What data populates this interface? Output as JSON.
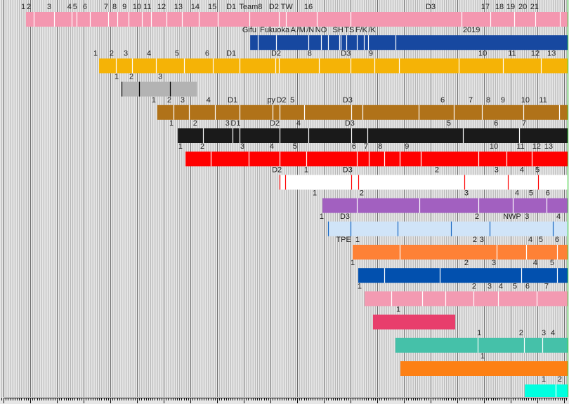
{
  "chart_data": {
    "type": "timeline",
    "title": "",
    "x_range": [
      2004.87,
      2026.13
    ],
    "x_unit": "year",
    "grid": "monthly minor, yearly major",
    "rows": [
      {
        "color": "#f497b0",
        "divider": "#ffffff",
        "start": 2005.84,
        "end": 2026.13,
        "dividers": [
          2006.13,
          2006.89,
          2007.55,
          2007.74,
          2008.24,
          2008.92,
          2009.26,
          2009.68,
          2010.18,
          2010.53,
          2011.11,
          2011.68,
          2012.32,
          2013.03,
          2014.21,
          2015.32,
          2015.58,
          2016.74,
          2018.0,
          2022.16,
          2023.24,
          2024.13,
          2024.92,
          2025.84
        ],
        "labels": [
          [
            "1",
            2005.74
          ],
          [
            "2",
            2005.95
          ],
          [
            "3",
            2006.71
          ],
          [
            "4",
            2007.47
          ],
          [
            "5",
            2007.68
          ],
          [
            "6",
            2008.05
          ],
          [
            "7",
            2008.84
          ],
          [
            "8",
            2009.16
          ],
          [
            "9",
            2009.53
          ],
          [
            "10",
            2010.0
          ],
          [
            "11",
            2010.39
          ],
          [
            "12",
            2010.92
          ],
          [
            "13",
            2011.55
          ],
          [
            "14",
            2012.18
          ],
          [
            "15",
            2012.82
          ],
          [
            "D1",
            2013.53
          ],
          [
            "Team8",
            2014.26
          ],
          [
            "D2",
            2015.13
          ],
          [
            "TW",
            2015.61
          ],
          [
            "16",
            2016.42
          ],
          [
            "D3",
            2021.0
          ],
          [
            "17",
            2023.05
          ],
          [
            "18",
            2023.58
          ],
          [
            "19",
            2024.0
          ],
          [
            "20",
            2024.45
          ],
          [
            "21",
            2024.89
          ]
        ]
      },
      {
        "color": "#1748a0",
        "divider": "#ffffff",
        "start": 2014.24,
        "end": 2026.13,
        "dividers": [
          2014.53,
          2015.21,
          2016.42,
          2016.89,
          2017.16,
          2017.58,
          2017.63,
          2017.84,
          2018.24,
          2018.5,
          2018.66,
          2019.68
        ],
        "labels": [
          [
            "Gifu",
            2014.21
          ],
          [
            "Fukuoka",
            2015.16
          ],
          [
            "A",
            2015.84
          ],
          [
            "/M",
            2016.13
          ],
          [
            "/N",
            2016.34
          ],
          [
            "NO",
            2016.84
          ],
          [
            "SH",
            2017.53
          ],
          [
            "TS",
            2017.76
          ],
          [
            "F/K",
            2018.11
          ],
          [
            "/K",
            2018.42
          ],
          [
            "2019",
            2022.53
          ]
        ]
      },
      {
        "color": "#f5b306",
        "divider": "#ffffff",
        "start": 2008.58,
        "end": 2026.13,
        "dividers": [
          2009.21,
          2009.82,
          2010.71,
          2011.76,
          2012.84,
          2013.84,
          2015.18,
          2015.32,
          2016.82,
          2018.0,
          2018.89,
          2019.82,
          2022.05,
          2023.71,
          2025.13
        ],
        "labels": [
          [
            "1",
            2008.45
          ],
          [
            "2",
            2009.05
          ],
          [
            "3",
            2009.58
          ],
          [
            "4",
            2010.45
          ],
          [
            "5",
            2011.5
          ],
          [
            "6",
            2012.63
          ],
          [
            "D1",
            2013.53
          ],
          [
            "D2",
            2015.21
          ],
          [
            "8",
            2016.47
          ],
          [
            "D3",
            2017.82
          ],
          [
            "9",
            2018.76
          ],
          [
            "10",
            2022.95
          ],
          [
            "11",
            2024.05
          ],
          [
            "12",
            2024.92
          ],
          [
            "13",
            2025.53
          ]
        ]
      },
      {
        "color": "#b3b3b3",
        "divider": "#000000",
        "start": 2009.42,
        "end": 2012.24,
        "dividers": [
          2009.42,
          2010.08,
          2011.24
        ],
        "labels": [
          [
            "1",
            2009.24
          ],
          [
            "2",
            2009.79
          ],
          [
            "3",
            2010.87
          ]
        ]
      },
      {
        "color": "#b07219",
        "divider": "#ffffff",
        "start": 2010.76,
        "end": 2026.13,
        "dividers": [
          2011.37,
          2011.95,
          2012.92,
          2013.84,
          2015.08,
          2015.34,
          2016.26,
          2018.03,
          2018.45,
          2020.55,
          2021.87,
          2022.92,
          2024.47,
          2025.82
        ],
        "labels": [
          [
            "1",
            2010.63
          ],
          [
            "2",
            2011.21
          ],
          [
            "3",
            2011.71
          ],
          [
            "4",
            2012.68
          ],
          [
            "D1",
            2013.58
          ],
          [
            "py",
            2015.03
          ],
          [
            "D2",
            2015.37
          ],
          [
            "5",
            2015.82
          ],
          [
            "D3",
            2017.89
          ],
          [
            "6",
            2021.45
          ],
          [
            "7",
            2022.5
          ],
          [
            "8",
            2023.16
          ],
          [
            "9",
            2023.71
          ],
          [
            "10",
            2024.55
          ],
          [
            "11",
            2025.21
          ]
        ]
      },
      {
        "color": "#1a1a1a",
        "divider": "#ffffff",
        "start": 2011.53,
        "end": 2026.13,
        "dividers": [
          2012.47,
          2013.58,
          2013.84,
          2015.34,
          2016.42,
          2018.03,
          2018.63,
          2022.21,
          2024.32
        ],
        "labels": [
          [
            "1",
            2011.29
          ],
          [
            "2",
            2012.18
          ],
          [
            "3",
            2013.39
          ],
          [
            "D1",
            2013.68
          ],
          [
            "D2",
            2015.16
          ],
          [
            "4",
            2016.05
          ],
          [
            "D3",
            2017.97
          ],
          [
            "5",
            2021.68
          ],
          [
            "6",
            2023.45
          ],
          [
            "7",
            2024.5
          ]
        ]
      },
      {
        "color": "#ff0000",
        "divider": "#ffffff",
        "start": 2011.82,
        "end": 2026.13,
        "dividers": [
          2012.76,
          2014.18,
          2015.34,
          2016.34,
          2018.24,
          2018.68,
          2019.26,
          2019.84,
          2020.63,
          2022.79,
          2023.84,
          2024.79
        ],
        "labels": [
          [
            "1",
            2011.63
          ],
          [
            "2",
            2012.45
          ],
          [
            "3",
            2013.95
          ],
          [
            "4",
            2015.05
          ],
          [
            "5",
            2015.92
          ],
          [
            "6",
            2018.13
          ],
          [
            "7",
            2018.58
          ],
          [
            "8",
            2019.11
          ],
          [
            "9",
            2020.11
          ],
          [
            "10",
            2023.37
          ],
          [
            "11",
            2024.37
          ],
          [
            "12",
            2024.97
          ],
          [
            "13",
            2025.42
          ]
        ]
      },
      {
        "color": "#ffffff",
        "divider": "#ff0000",
        "start": 2015.34,
        "end": 2026.13,
        "dividers": [
          2015.34,
          2015.55,
          2018.03,
          2018.29,
          2022.26,
          2023.89,
          2025.03
        ],
        "labels": [
          [
            "D2",
            2015.24
          ],
          [
            "1",
            2016.34
          ],
          [
            "D3",
            2017.89
          ],
          [
            "2",
            2021.24
          ],
          [
            "3",
            2023.47
          ],
          [
            "4",
            2024.42
          ],
          [
            "5",
            2025.0
          ]
        ]
      },
      {
        "color": "#a260c0",
        "divider": "#ffffff",
        "start": 2016.95,
        "end": 2026.13,
        "dividers": [
          2018.24,
          2020.58,
          2022.79,
          2024.08,
          2025.34
        ],
        "labels": [
          [
            "1",
            2016.66
          ],
          [
            "2",
            2018.42
          ],
          [
            "3",
            2022.34
          ],
          [
            "4",
            2024.24
          ],
          [
            "5",
            2024.76
          ],
          [
            "6",
            2025.39
          ]
        ]
      },
      {
        "color": "#d0e4f8",
        "divider": "#1565c0",
        "start": 2017.16,
        "end": 2026.13,
        "dividers": [
          2017.16,
          2018.0,
          2019.76,
          2021.76,
          2023.21,
          2025.58
        ],
        "labels": [
          [
            "1",
            2016.92
          ],
          [
            "D3",
            2017.79
          ],
          [
            "2",
            2022.74
          ],
          [
            "NWP",
            2024.05
          ],
          [
            "3",
            2024.61
          ],
          [
            "4",
            2025.79
          ]
        ]
      },
      {
        "color": "#fe8136",
        "divider": "#ffffff",
        "start": 2018.08,
        "end": 2026.13,
        "dividers": [
          2019.84,
          2023.47,
          2024.58,
          2025.74
        ],
        "labels": [
          [
            "TPE",
            2017.74
          ],
          [
            "1",
            2018.26
          ],
          [
            "2",
            2022.66
          ],
          [
            "3",
            2022.92
          ],
          [
            "4",
            2024.74
          ],
          [
            "5",
            2025.13
          ],
          [
            "6",
            2025.74
          ]
        ]
      },
      {
        "color": "#0250ae",
        "divider": "#ffffff",
        "start": 2018.29,
        "end": 2026.13,
        "dividers": [
          2019.26,
          2021.34,
          2024.39,
          2025.74
        ],
        "labels": [
          [
            "1",
            2018.08
          ],
          [
            "2",
            2022.34
          ],
          [
            "3",
            2023.37
          ],
          [
            "4",
            2024.92
          ],
          [
            "5",
            2025.55
          ]
        ]
      },
      {
        "color": "#f39ab2",
        "divider": "#ffffff",
        "start": 2018.53,
        "end": 2026.13,
        "dividers": [
          2019.53,
          2020.68,
          2021.55,
          2022.61,
          2023.53,
          2024.97
        ],
        "labels": [
          [
            "1",
            2018.34
          ],
          [
            "2",
            2022.63
          ],
          [
            "3",
            2023.21
          ],
          [
            "4",
            2023.63
          ],
          [
            "5",
            2024.16
          ],
          [
            "6",
            2024.63
          ],
          [
            "7",
            2025.34
          ]
        ]
      },
      {
        "color": "#e83e6c",
        "divider": "#ffffff",
        "start": 2018.84,
        "end": 2021.92,
        "dividers": [],
        "labels": [
          [
            "1",
            2019.79
          ]
        ]
      },
      {
        "color": "#45c1a9",
        "divider": "#ffffff",
        "start": 2019.68,
        "end": 2026.13,
        "dividers": [
          2022.76,
          2024.5,
          2025.18
        ],
        "labels": [
          [
            "1",
            2022.82
          ],
          [
            "2",
            2024.39
          ],
          [
            "3",
            2025.24
          ],
          [
            "4",
            2025.58
          ]
        ]
      },
      {
        "color": "#fd8014",
        "divider": "#ffffff",
        "start": 2019.87,
        "end": 2026.13,
        "dividers": [],
        "labels": [
          [
            "1",
            2022.95
          ]
        ]
      },
      {
        "color": "#00ffe0",
        "divider": "#ffffff",
        "start": 2024.53,
        "end": 2026.13,
        "dividers": [
          2025.68
        ],
        "labels": [
          [
            "1",
            2025.24
          ],
          [
            "2",
            2025.84
          ]
        ]
      }
    ]
  }
}
